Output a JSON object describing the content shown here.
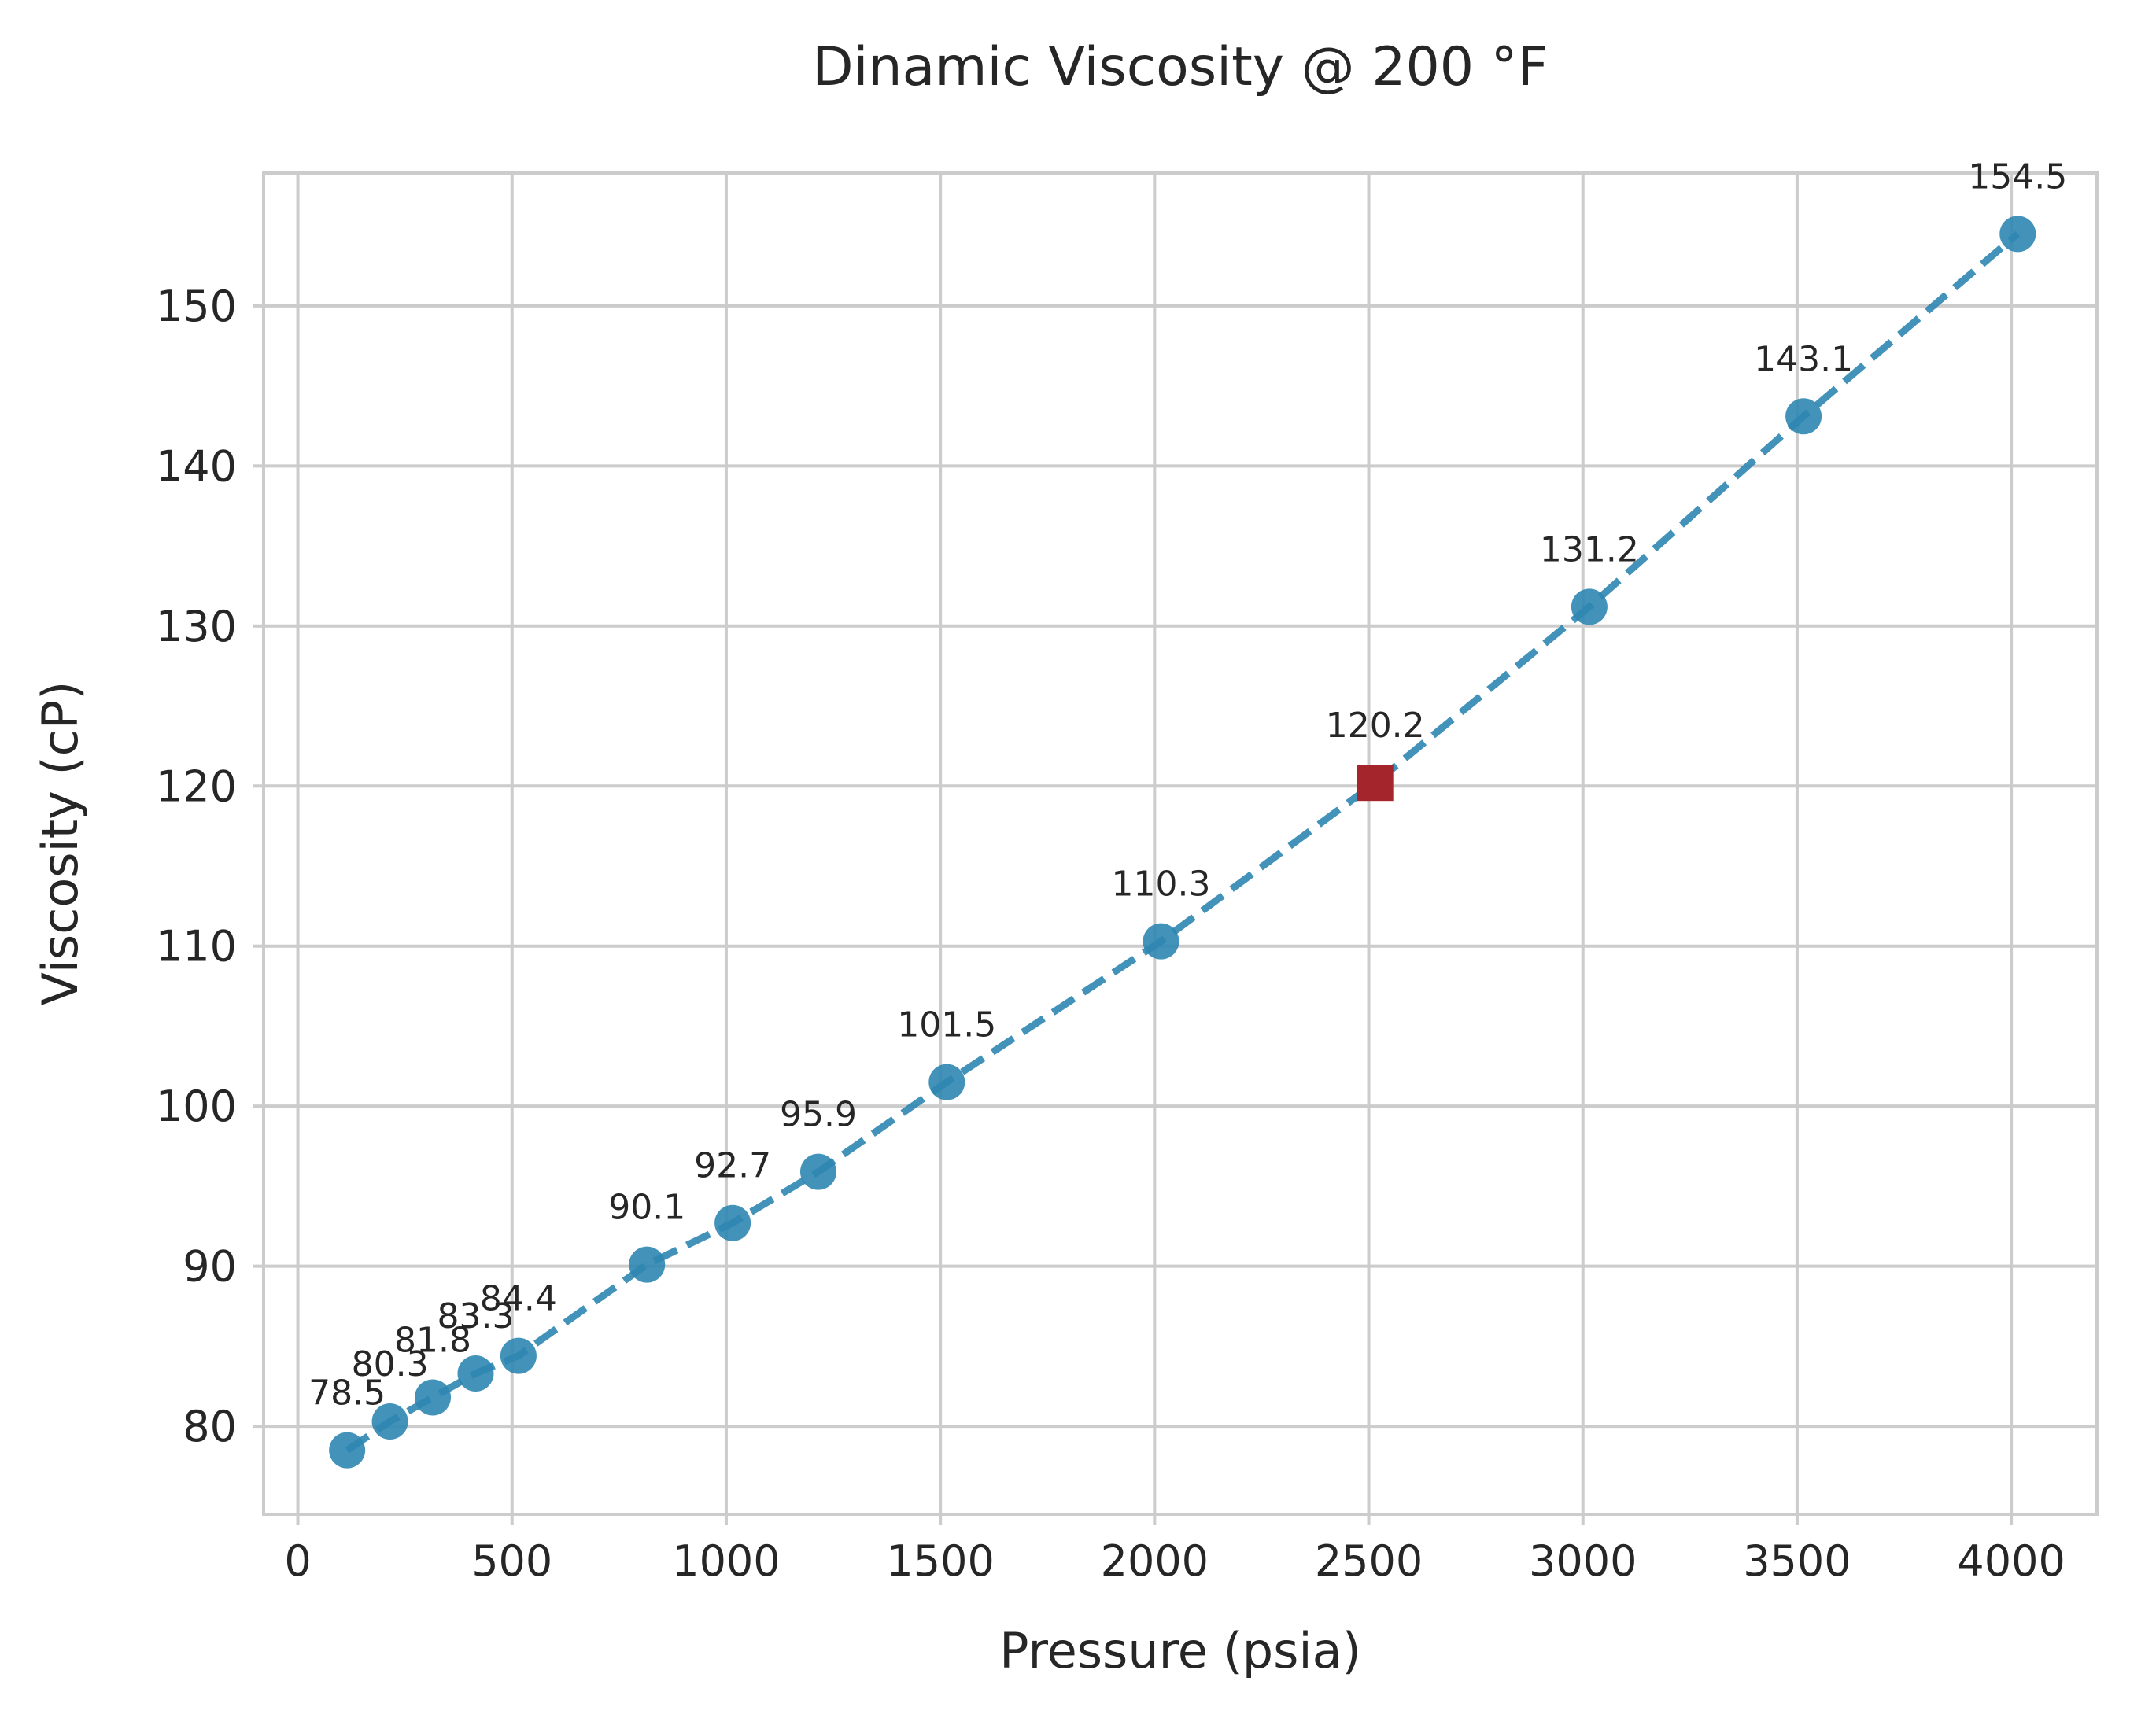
{
  "chart_data": {
    "type": "line",
    "title": "Dinamic Viscosity @ 200 °F",
    "xlabel": "Pressure (psia)",
    "ylabel": "Viscosity (cP)",
    "xlim": [
      -80,
      4200
    ],
    "ylim": [
      74.5,
      158.3
    ],
    "grid": true,
    "x_ticks": [
      0,
      500,
      1000,
      1500,
      2000,
      2500,
      3000,
      3500,
      4000
    ],
    "y_ticks": [
      80,
      90,
      100,
      110,
      120,
      130,
      140,
      150
    ],
    "colors": {
      "series": "#2e86b1",
      "highlight": "#a4262c",
      "grid": "#cccccc",
      "text": "#262626"
    },
    "series": [
      {
        "line_style": "dashed",
        "marker": "circle",
        "points": [
          {
            "x": 115,
            "y": 78.5,
            "label": "78.5"
          },
          {
            "x": 215,
            "y": 80.3,
            "label": "80.3"
          },
          {
            "x": 315,
            "y": 81.8,
            "label": "81.8"
          },
          {
            "x": 415,
            "y": 83.3,
            "label": "83.3"
          },
          {
            "x": 515,
            "y": 84.4,
            "label": "84.4"
          },
          {
            "x": 815,
            "y": 90.1,
            "label": "90.1"
          },
          {
            "x": 1015,
            "y": 92.7,
            "label": "92.7"
          },
          {
            "x": 1215,
            "y": 95.9,
            "label": "95.9"
          },
          {
            "x": 1515,
            "y": 101.5,
            "label": "101.5"
          },
          {
            "x": 2015,
            "y": 110.3,
            "label": "110.3"
          },
          {
            "x": 2515,
            "y": 120.2,
            "label": "120.2",
            "highlight": true
          },
          {
            "x": 3015,
            "y": 131.2,
            "label": "131.2"
          },
          {
            "x": 3515,
            "y": 143.1,
            "label": "143.1"
          },
          {
            "x": 4015,
            "y": 154.5,
            "label": "154.5"
          }
        ]
      }
    ]
  }
}
